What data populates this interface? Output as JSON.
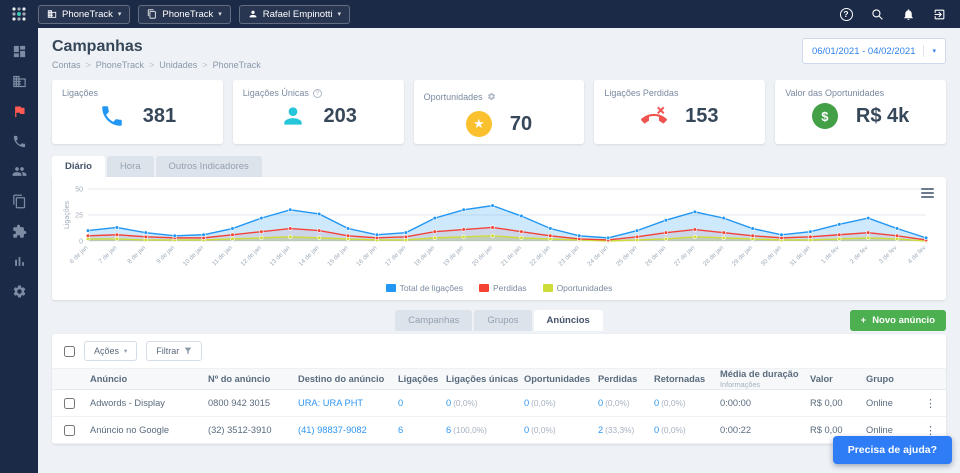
{
  "topbar": {
    "account": "PhoneTrack",
    "unit": "PhoneTrack",
    "user": "Rafael Empinotti"
  },
  "header": {
    "title": "Campanhas",
    "breadcrumb": [
      "Contas",
      "PhoneTrack",
      "Unidades",
      "PhoneTrack"
    ],
    "date_range": "06/01/2021 - 04/02/2021"
  },
  "stats": [
    {
      "label": "Ligações",
      "value": "381",
      "icon": "phone-icon",
      "color": "#2196f3"
    },
    {
      "label": "Ligações Únicas",
      "value": "203",
      "icon": "person-icon",
      "color": "#26c6da"
    },
    {
      "label": "Oportunidades",
      "value": "70",
      "icon": "star-icon",
      "color": "#fbc02d"
    },
    {
      "label": "Ligações Perdidas",
      "value": "153",
      "icon": "missed-call-icon",
      "color": "#ef5350"
    },
    {
      "label": "Valor das Oportunidades",
      "value": "R$ 4k",
      "icon": "dollar-icon",
      "color": "#43a047"
    }
  ],
  "chart_tabs": {
    "items": [
      "Diário",
      "Hora",
      "Outros Indicadores"
    ],
    "active": 0
  },
  "chart_data": {
    "type": "line",
    "ylabel": "Ligações",
    "ylim": [
      0,
      50
    ],
    "yticks": [
      0,
      25,
      50
    ],
    "grid": true,
    "legend_position": "bottom",
    "categories": [
      "6 de jan",
      "7 de jan",
      "8 de jan",
      "9 de jan",
      "10 de jan",
      "11 de jan",
      "12 de jan",
      "13 de jan",
      "14 de jan",
      "15 de jan",
      "16 de jan",
      "17 de jan",
      "18 de jan",
      "19 de jan",
      "20 de jan",
      "21 de jan",
      "22 de jan",
      "23 de jan",
      "24 de jan",
      "25 de jan",
      "26 de jan",
      "27 de jan",
      "28 de jan",
      "29 de jan",
      "30 de jan",
      "31 de jan",
      "1 de fev",
      "2 de fev",
      "3 de fev",
      "4 de fev"
    ],
    "series": [
      {
        "name": "Total de ligações",
        "color": "#2196f3",
        "fill": "rgba(33,150,243,0.22)",
        "values": [
          10,
          13,
          8,
          5,
          6,
          12,
          22,
          30,
          26,
          12,
          6,
          8,
          22,
          30,
          34,
          24,
          12,
          5,
          3,
          10,
          20,
          28,
          22,
          12,
          6,
          9,
          16,
          22,
          12,
          3
        ]
      },
      {
        "name": "Perdidas",
        "color": "#f44336",
        "fill": "rgba(244,67,54,0.12)",
        "values": [
          5,
          6,
          4,
          3,
          3,
          6,
          9,
          12,
          10,
          5,
          3,
          4,
          9,
          11,
          13,
          9,
          5,
          2,
          1,
          4,
          8,
          11,
          8,
          5,
          3,
          4,
          6,
          8,
          5,
          1
        ]
      },
      {
        "name": "Oportunidades",
        "color": "#cddc39",
        "fill": "rgba(205,220,57,0.35)",
        "values": [
          2,
          2,
          1,
          1,
          1,
          2,
          3,
          4,
          3,
          2,
          1,
          1,
          3,
          4,
          5,
          3,
          2,
          1,
          0,
          1,
          2,
          4,
          3,
          2,
          1,
          1,
          2,
          3,
          2,
          0
        ]
      }
    ]
  },
  "section_tabs": {
    "items": [
      "Campanhas",
      "Grupos",
      "Anúncios"
    ],
    "active": 2
  },
  "new_ad_button": "Novo anúncio",
  "table": {
    "actions_button": "Ações",
    "filter_button": "Filtrar",
    "columns": [
      {
        "label": "Anúncio"
      },
      {
        "label": "Nº do anúncio"
      },
      {
        "label": "Destino do anúncio"
      },
      {
        "label": "Ligações"
      },
      {
        "label": "Ligações únicas"
      },
      {
        "label": "Oportunidades"
      },
      {
        "label": "Perdidas"
      },
      {
        "label": "Retornadas"
      },
      {
        "label": "Média de duração",
        "sub": "Informações"
      },
      {
        "label": "Valor"
      },
      {
        "label": "Grupo"
      }
    ],
    "rows": [
      {
        "cells": [
          {
            "main": "Adwords - Display"
          },
          {
            "main": "0800 942 3015"
          },
          {
            "main": "URA: URA PHT",
            "link": true
          },
          {
            "main": "0",
            "link": true
          },
          {
            "main": "0",
            "sub": "(0,0%)",
            "link": true
          },
          {
            "main": "0",
            "sub": "(0,0%)",
            "link": true
          },
          {
            "main": "0",
            "sub": "(0,0%)",
            "link": true
          },
          {
            "main": "0",
            "sub": "(0,0%)",
            "link": true
          },
          {
            "main": "0:00:00"
          },
          {
            "main": "R$ 0,00"
          },
          {
            "main": "Online"
          }
        ]
      },
      {
        "cells": [
          {
            "main": "Anúncio no Google"
          },
          {
            "main": "(32) 3512-3910"
          },
          {
            "main": "(41) 98837-9082",
            "link": true
          },
          {
            "main": "6",
            "link": true
          },
          {
            "main": "6",
            "sub": "(100,0%)",
            "link": true
          },
          {
            "main": "0",
            "sub": "(0,0%)",
            "link": true
          },
          {
            "main": "2",
            "sub": "(33,3%)",
            "link": true
          },
          {
            "main": "0",
            "sub": "(0,0%)",
            "link": true
          },
          {
            "main": "0:00:22"
          },
          {
            "main": "R$ 0,00"
          },
          {
            "main": "Online"
          }
        ]
      }
    ]
  },
  "help_button": "Precisa de ajuda?",
  "sidebar_icons": [
    "dashboard-icon",
    "company-icon",
    "campaigns-flag-icon",
    "calls-phone-icon",
    "contacts-users-icon",
    "reports-copy-icon",
    "integrations-puzzle-icon",
    "analytics-chart-icon",
    "settings-gear-icon"
  ],
  "topbar_icons": [
    "help-icon",
    "search-icon",
    "notifications-icon",
    "logout-icon"
  ],
  "colors": {
    "navy": "#1b2a47",
    "accent": "#2196f3",
    "danger": "#f44336",
    "success": "#4caf50",
    "warning": "#fbc02d",
    "teal": "#26c6da",
    "help_blue": "#2e7cf6"
  }
}
